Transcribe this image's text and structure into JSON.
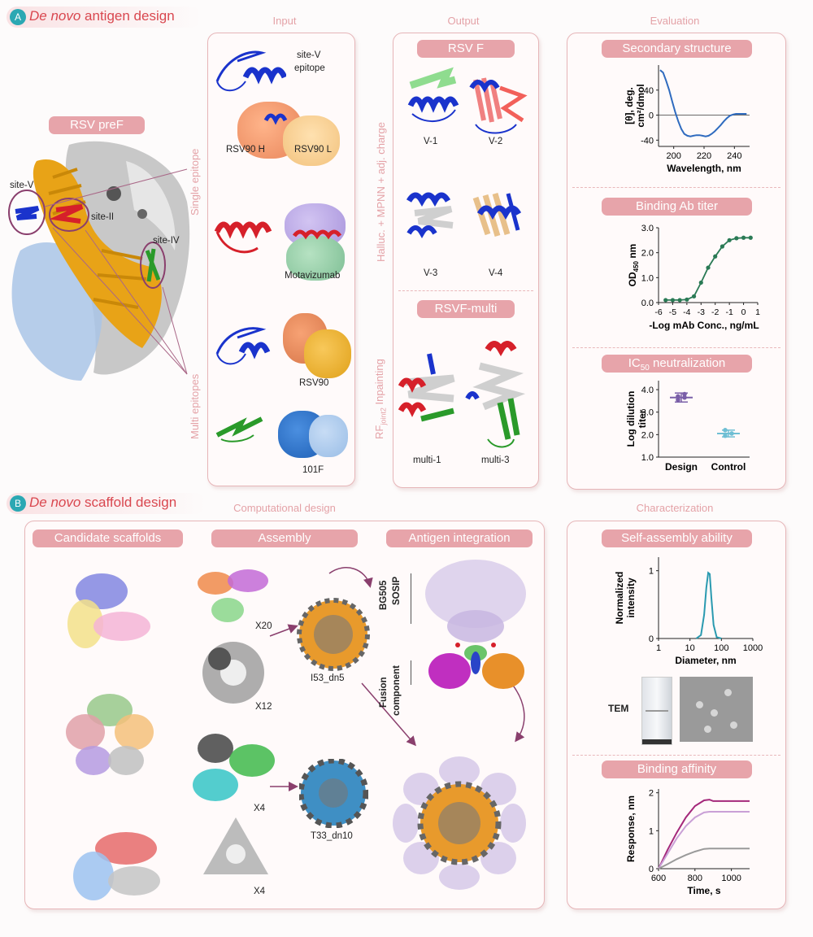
{
  "section_a": {
    "badge": "A",
    "title_italic": "De novo",
    "title_rest": " antigen design"
  },
  "section_b": {
    "badge": "B",
    "title_italic": "De novo",
    "title_rest": " scaffold design"
  },
  "column_heads": {
    "input": "Input",
    "output": "Output",
    "evaluation": "Evaluation",
    "computational": "Computational design",
    "characterization": "Characterization"
  },
  "rsv_pref": {
    "pill": "RSV preF",
    "site_v": "site-V",
    "site_ii": "site-II",
    "site_iv": "site-IV",
    "single_epitope": "Single epitope",
    "multi_epitopes": "Multi epitopes"
  },
  "input": {
    "site_v_epitope_1": "site-V",
    "site_v_epitope_2": "epitope",
    "rsv90h": "RSV90 H",
    "rsv90l": "RSV90 L",
    "motavizumab": "Motavizumab",
    "rsv90": "RSV90",
    "f101": "101F"
  },
  "output": {
    "pill_rsvf": "RSV F",
    "side_label_top": "Halluc. + MPNN + adj. charge",
    "v1": "V-1",
    "v2": "V-2",
    "v3": "V-3",
    "v4": "V-4",
    "pill_multi": "RSVF-multi",
    "side_label_rf": "RF",
    "side_label_rf_sub": "joint2",
    "side_label_rf_rest": " Inpainting",
    "multi1": "multi-1",
    "multi3": "multi-3"
  },
  "evaluation": {
    "pill_ss": "Secondary structure",
    "pill_binding": "Binding Ab titer",
    "pill_ic50_pre": "IC",
    "pill_ic50_sub": "50",
    "pill_ic50_post": " neutralization"
  },
  "chart_cd": {
    "type": "line",
    "ylabel_1": "[θ], deg.",
    "ylabel_2": "cm²/dmol",
    "xlabel": "Wavelength, nm",
    "xticks": [
      "200",
      "220",
      "240"
    ],
    "yticks": [
      "40",
      "0",
      "-40"
    ],
    "xlim": [
      190,
      250
    ],
    "ylim": [
      -50,
      80
    ],
    "x": [
      191,
      193,
      195,
      197,
      199,
      201,
      203,
      205,
      207,
      209,
      211,
      213,
      215,
      217,
      219,
      221,
      223,
      225,
      227,
      229,
      231,
      233,
      235,
      237,
      239,
      241,
      243,
      245,
      248
    ],
    "y": [
      72,
      68,
      55,
      40,
      22,
      5,
      -10,
      -22,
      -30,
      -33,
      -34,
      -33,
      -32,
      -32,
      -33,
      -34,
      -33,
      -30,
      -26,
      -21,
      -16,
      -10,
      -5,
      -1,
      1,
      2,
      2,
      2,
      2
    ],
    "color": "#2f6bbf"
  },
  "chart_titer": {
    "type": "line",
    "ylabel_pre": "OD",
    "ylabel_sub": "450",
    "ylabel_post": " nm",
    "xlabel": "-Log mAb Conc., ng/mL",
    "xticks": [
      "-6",
      "-5",
      "-4",
      "-3",
      "-2",
      "-1",
      "0",
      "1"
    ],
    "yticks": [
      "0.0",
      "1.0",
      "2.0",
      "3.0"
    ],
    "xlim": [
      -6,
      1
    ],
    "ylim": [
      0,
      3
    ],
    "x": [
      -5.5,
      -5,
      -4.5,
      -4,
      -3.5,
      -3,
      -2.5,
      -2,
      -1.5,
      -1,
      -0.5,
      0,
      0.5
    ],
    "y": [
      0.1,
      0.1,
      0.1,
      0.12,
      0.25,
      0.8,
      1.4,
      1.85,
      2.25,
      2.5,
      2.58,
      2.6,
      2.6
    ],
    "color": "#2a7a55"
  },
  "chart_ic50": {
    "type": "scatter",
    "ylabel_1": "Log dilution",
    "ylabel_2": "titer",
    "categories": [
      "Design",
      "Control"
    ],
    "yticks": [
      "4.0",
      "3.0",
      "2.0",
      "1.0"
    ],
    "ylim": [
      1,
      4.4
    ],
    "design_points": [
      3.55,
      3.65,
      3.7,
      3.8
    ],
    "design_mean": 3.65,
    "design_err": [
      3.45,
      3.85
    ],
    "control_points": [
      1.95,
      2.05,
      2.2
    ],
    "control_mean": 2.05,
    "control_err": [
      1.9,
      2.2
    ],
    "design_color": "#7a5fa8",
    "control_color": "#6fbfd4"
  },
  "scaffold": {
    "pill_candidates": "Candidate scaffolds",
    "pill_assembly": "Assembly",
    "pill_antigen": "Antigen integration",
    "x20": "X20",
    "x12": "X12",
    "x4a": "X4",
    "x4b": "X4",
    "i53": "I53_dn5",
    "t33": "T33_dn10",
    "bg505_1": "BG505",
    "bg505_2": "SOSIP",
    "fusion_1": "Fusion",
    "fusion_2": "component"
  },
  "characterization": {
    "pill_self": "Self-assembly ability",
    "pill_affinity": "Binding affinity",
    "tem": "TEM"
  },
  "chart_dls": {
    "type": "line",
    "ylabel_1": "Normalized",
    "ylabel_2": "intensity",
    "xlabel": "Diameter, nm",
    "xticks": [
      "1",
      "10",
      "100",
      "1000"
    ],
    "yticks": [
      "1",
      "0"
    ],
    "xlim_log10": [
      0,
      3
    ],
    "ylim": [
      0,
      1.2
    ],
    "x_log10": [
      1.2,
      1.35,
      1.45,
      1.52,
      1.58,
      1.63,
      1.68,
      1.75,
      1.85,
      2.0
    ],
    "y": [
      0,
      0.05,
      0.35,
      0.75,
      0.97,
      0.95,
      0.6,
      0.2,
      0.02,
      0
    ],
    "color": "#2a9ab0"
  },
  "chart_bli": {
    "type": "line",
    "ylabel": "Response, nm",
    "xlabel": "Time, s",
    "xticks": [
      "600",
      "800",
      "1000"
    ],
    "yticks": [
      "0",
      "1",
      "2"
    ],
    "xlim": [
      600,
      1100
    ],
    "ylim": [
      0,
      2.1
    ],
    "x": [
      600,
      650,
      700,
      750,
      800,
      850,
      880,
      900,
      950,
      1000,
      1050,
      1100
    ],
    "series": [
      {
        "y": [
          0,
          0.5,
          0.95,
          1.35,
          1.65,
          1.8,
          1.82,
          1.78,
          1.78,
          1.78,
          1.78,
          1.78
        ],
        "color": "#a4287a"
      },
      {
        "y": [
          0,
          0.4,
          0.8,
          1.12,
          1.35,
          1.48,
          1.5,
          1.5,
          1.5,
          1.5,
          1.5,
          1.5
        ],
        "color": "#c9a0d6"
      },
      {
        "y": [
          0,
          0.12,
          0.25,
          0.36,
          0.45,
          0.52,
          0.53,
          0.53,
          0.53,
          0.53,
          0.53,
          0.53
        ],
        "color": "#9a9a9a"
      }
    ]
  }
}
